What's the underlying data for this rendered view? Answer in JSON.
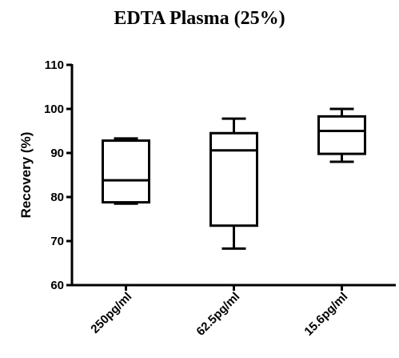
{
  "chart_data": {
    "type": "boxplot",
    "title": "EDTA Plasma (25%)",
    "xlabel": "",
    "ylabel": "Recovery (%)",
    "ylim": [
      60,
      110
    ],
    "yticks": [
      60,
      70,
      80,
      90,
      100,
      110
    ],
    "categories": [
      "250pg/ml",
      "62.5pg/ml",
      "15.6pg/ml"
    ],
    "boxes": [
      {
        "min": 78.5,
        "q1": 78.8,
        "median": 83.8,
        "q3": 92.8,
        "max": 93.3
      },
      {
        "min": 68.3,
        "q1": 73.5,
        "median": 90.6,
        "q3": 94.5,
        "max": 97.8
      },
      {
        "min": 88.0,
        "q1": 89.8,
        "median": 95.0,
        "q3": 98.3,
        "max": 100.0
      }
    ],
    "grid": false,
    "legend": "none"
  }
}
